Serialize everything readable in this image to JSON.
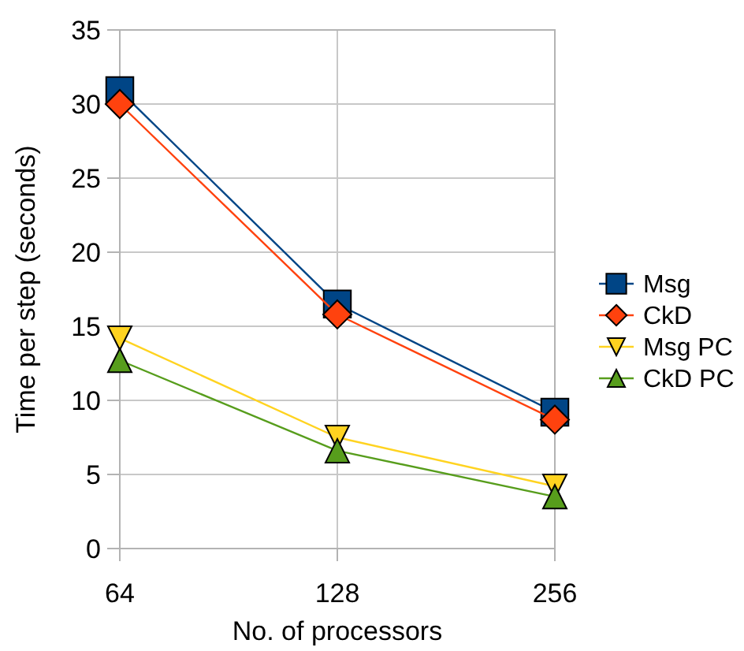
{
  "chart_data": {
    "type": "line",
    "xlabel": "No. of processors",
    "ylabel": "Time per step (seconds)",
    "categories": [
      "64",
      "128",
      "256"
    ],
    "ylim": [
      0,
      35
    ],
    "yticks": [
      0,
      5,
      10,
      15,
      20,
      25,
      30,
      35
    ],
    "grid": true,
    "legend": "right",
    "series": [
      {
        "name": "Msg",
        "color": "#004586",
        "marker": "square",
        "values": [
          30.9,
          16.5,
          9.2
        ]
      },
      {
        "name": "CkD",
        "color": "#ff420e",
        "marker": "diamond",
        "values": [
          30,
          15.8,
          8.7
        ]
      },
      {
        "name": "Msg PC",
        "color": "#ffd320",
        "marker": "triangle-down",
        "values": [
          14.2,
          7.5,
          4.2
        ]
      },
      {
        "name": "CkD PC",
        "color": "#579d1c",
        "marker": "triangle",
        "values": [
          12.7,
          6.6,
          3.5
        ]
      }
    ]
  }
}
